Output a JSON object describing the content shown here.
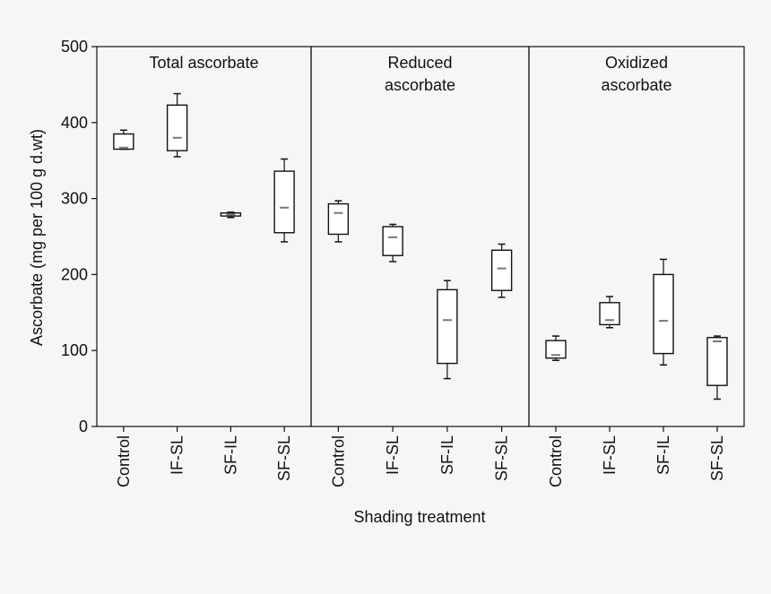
{
  "chart_data": {
    "type": "box",
    "ylabel": "Ascorbate (mg per 100 g d.wt)",
    "xlabel": "Shading treatment",
    "ylim": [
      0,
      500
    ],
    "yticks": [
      0,
      100,
      200,
      300,
      400,
      500
    ],
    "grid": false,
    "categories": [
      "Control",
      "IF-SL",
      "SF-IL",
      "SF-SL"
    ],
    "panels": [
      {
        "title_lines": [
          "Total ascorbate"
        ],
        "boxes": [
          {
            "category": "Control",
            "min": 365,
            "q1": 365,
            "median": 367,
            "q3": 385,
            "max": 390
          },
          {
            "category": "IF-SL",
            "min": 355,
            "q1": 363,
            "median": 380,
            "q3": 423,
            "max": 438
          },
          {
            "category": "SF-IL",
            "min": 275,
            "q1": 277,
            "median": 279,
            "q3": 281,
            "max": 282
          },
          {
            "category": "SF-SL",
            "min": 243,
            "q1": 255,
            "median": 288,
            "q3": 336,
            "max": 352
          }
        ]
      },
      {
        "title_lines": [
          "Reduced",
          "ascorbate"
        ],
        "boxes": [
          {
            "category": "Control",
            "min": 243,
            "q1": 253,
            "median": 281,
            "q3": 293,
            "max": 297
          },
          {
            "category": "IF-SL",
            "min": 217,
            "q1": 225,
            "median": 249,
            "q3": 263,
            "max": 266
          },
          {
            "category": "SF-IL",
            "min": 63,
            "q1": 83,
            "median": 140,
            "q3": 180,
            "max": 192
          },
          {
            "category": "SF-SL",
            "min": 170,
            "q1": 179,
            "median": 208,
            "q3": 232,
            "max": 240
          }
        ]
      },
      {
        "title_lines": [
          "Oxidized",
          "ascorbate"
        ],
        "boxes": [
          {
            "category": "Control",
            "min": 87,
            "q1": 90,
            "median": 94,
            "q3": 113,
            "max": 119
          },
          {
            "category": "IF-SL",
            "min": 130,
            "q1": 134,
            "median": 140,
            "q3": 163,
            "max": 171
          },
          {
            "category": "SF-IL",
            "min": 81,
            "q1": 96,
            "median": 139,
            "q3": 200,
            "max": 220
          },
          {
            "category": "SF-SL",
            "min": 36,
            "q1": 54,
            "median": 112,
            "q3": 117,
            "max": 119
          }
        ]
      }
    ]
  },
  "colors": {
    "axis": "#111111",
    "box_fill": "#ffffff",
    "median": "#777777",
    "background": "#f6f6f6"
  }
}
